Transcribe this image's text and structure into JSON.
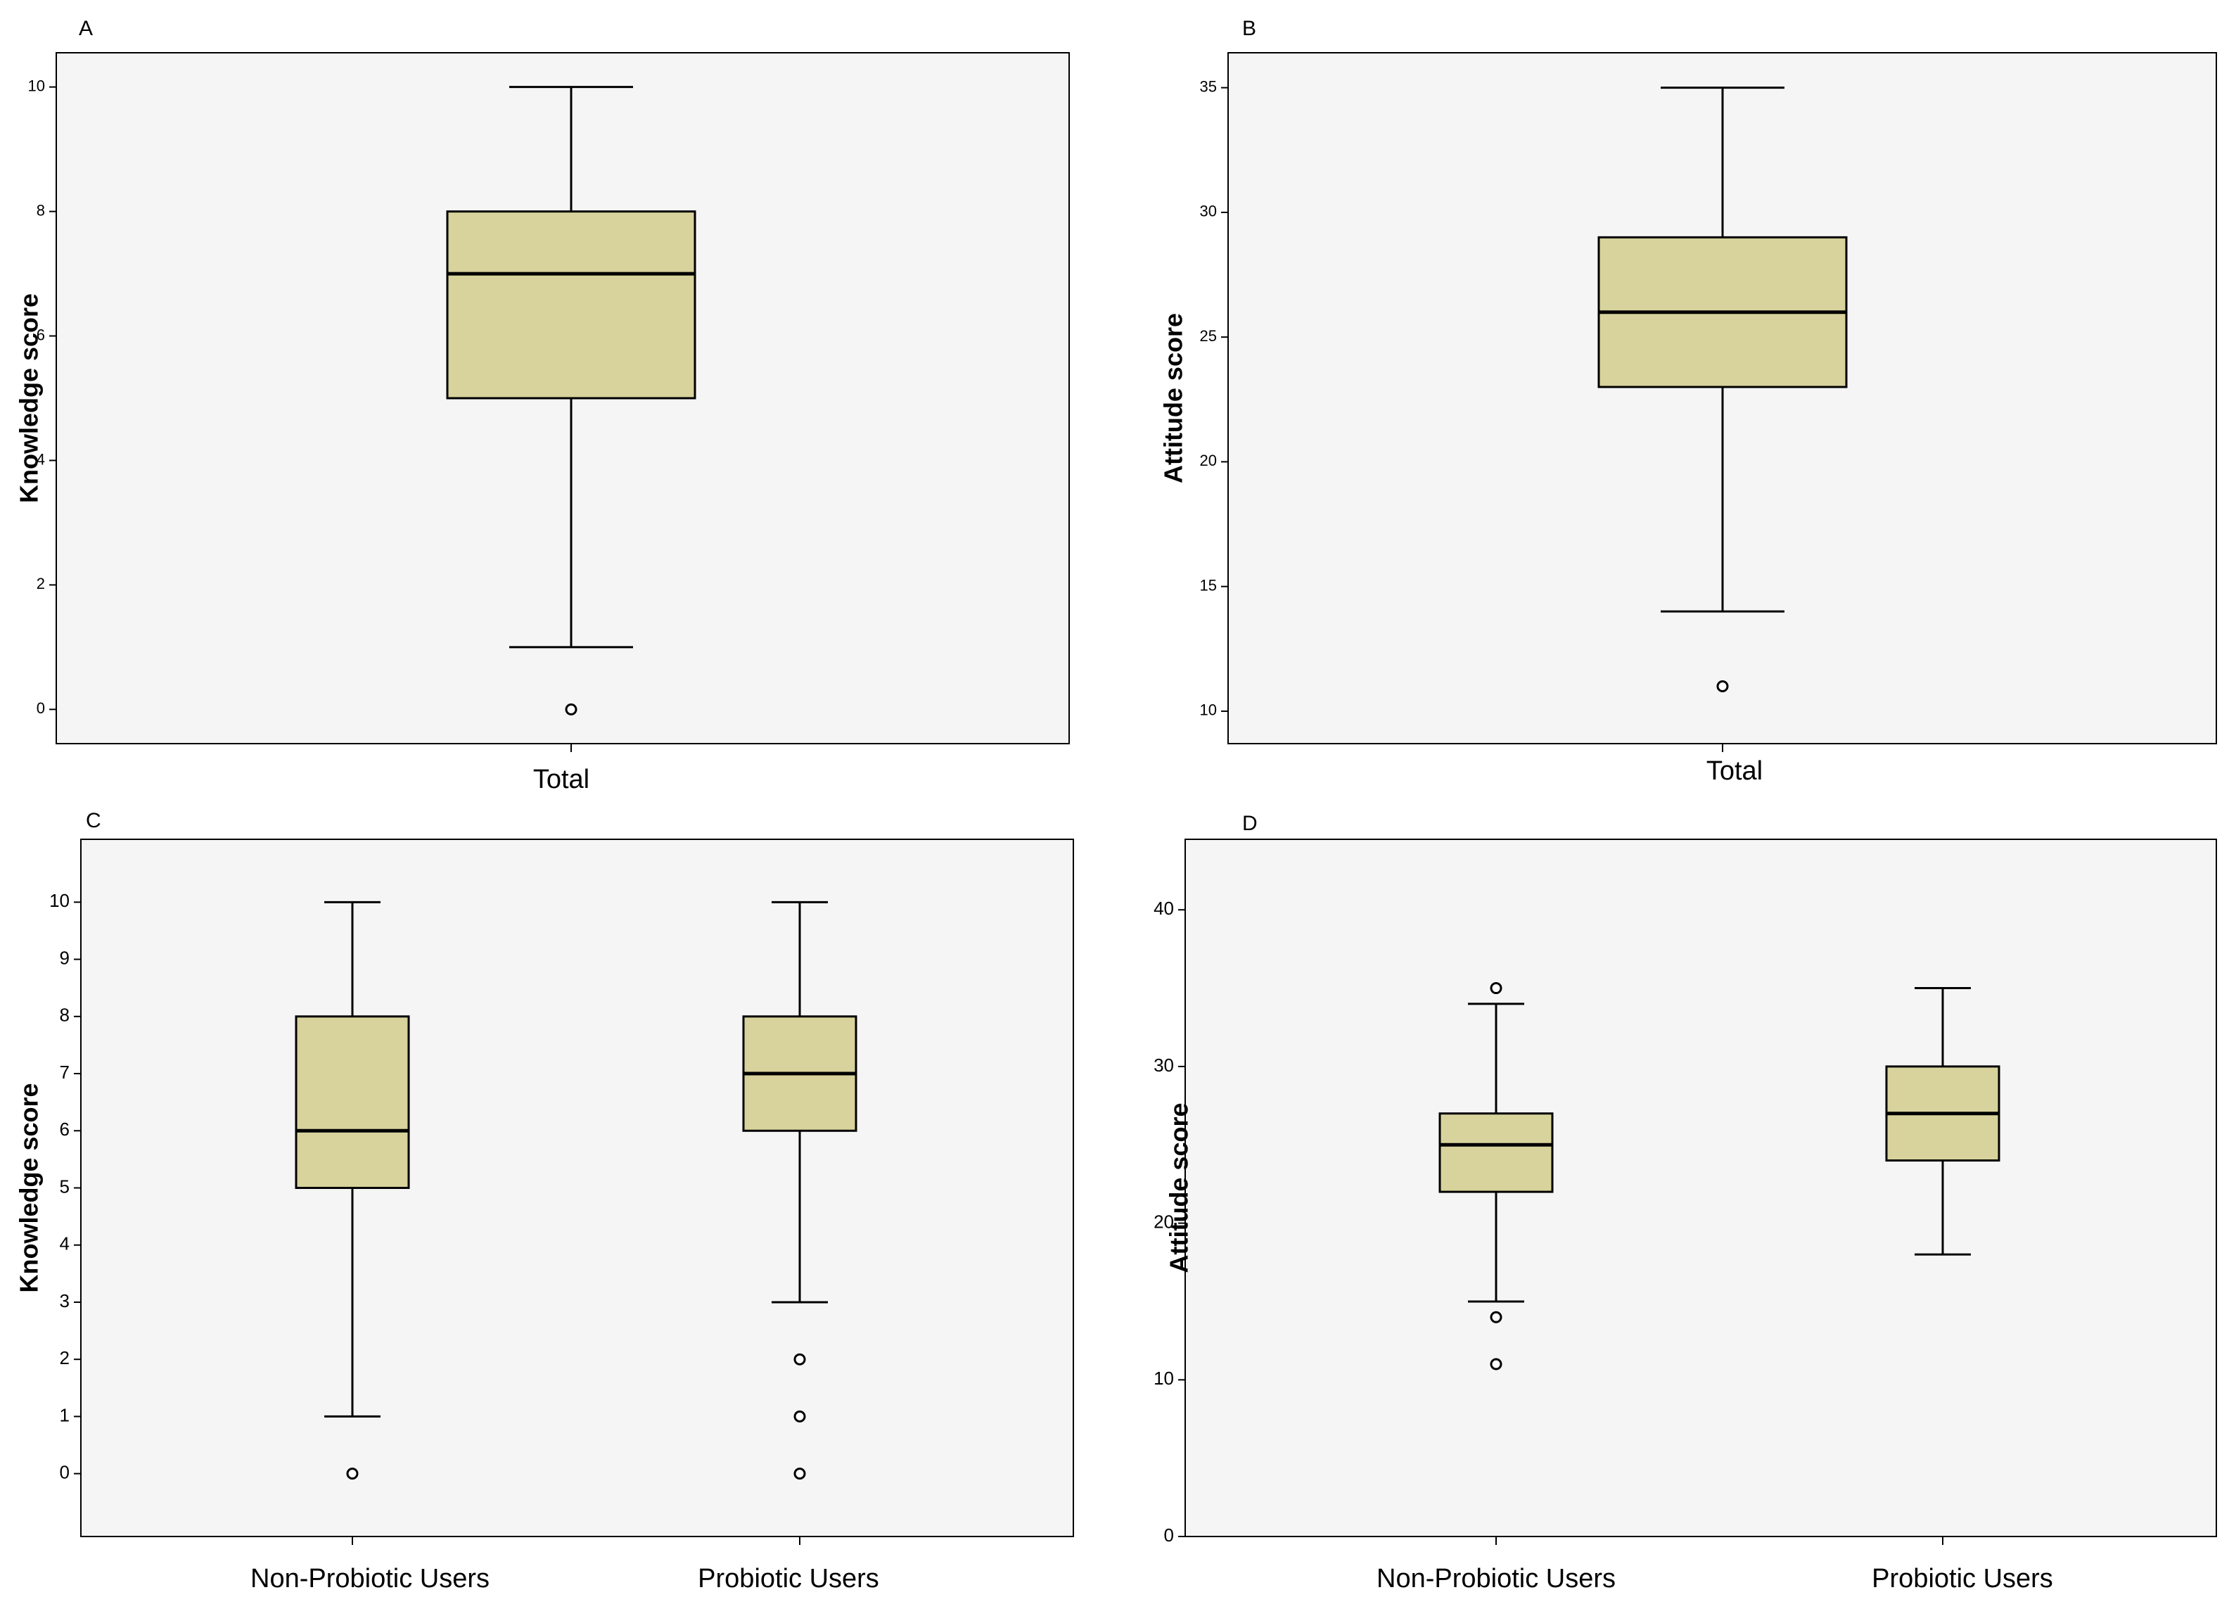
{
  "chart_data": [
    {
      "type": "box",
      "panel": "A",
      "ylabel": "Knowledge score",
      "xlabel": "",
      "ylim": [
        -0.55,
        10.55
      ],
      "yticks": [
        0,
        2,
        4,
        6,
        8,
        10
      ],
      "categories": [
        "Total"
      ],
      "boxes": [
        {
          "category": "Total",
          "whisker_low": 1,
          "q1": 5,
          "median": 7,
          "q3": 8,
          "whisker_high": 10,
          "outliers": [
            0
          ]
        }
      ]
    },
    {
      "type": "box",
      "panel": "B",
      "ylabel": "Attitude score",
      "xlabel": "",
      "ylim": [
        8.7,
        36.4
      ],
      "yticks": [
        10,
        15,
        20,
        25,
        30,
        35
      ],
      "categories": [
        "Total"
      ],
      "boxes": [
        {
          "category": "Total",
          "whisker_low": 14,
          "q1": 23,
          "median": 26,
          "q3": 29,
          "whisker_high": 35,
          "outliers": [
            11
          ]
        }
      ]
    },
    {
      "type": "box",
      "panel": "C",
      "ylabel": "Knowledge score",
      "xlabel": "",
      "ylim": [
        -1.1,
        11.1
      ],
      "yticks": [
        0,
        1,
        2,
        3,
        4,
        5,
        6,
        7,
        8,
        9,
        10
      ],
      "categories": [
        "Non-Probiotic Users",
        "Probiotic Users"
      ],
      "boxes": [
        {
          "category": "Non-Probiotic Users",
          "whisker_low": 1,
          "q1": 5,
          "median": 6,
          "q3": 8,
          "whisker_high": 10,
          "outliers": [
            0
          ]
        },
        {
          "category": "Probiotic Users",
          "whisker_low": 3,
          "q1": 6,
          "median": 7,
          "q3": 8,
          "whisker_high": 10,
          "outliers": [
            2,
            1,
            0
          ]
        }
      ]
    },
    {
      "type": "box",
      "panel": "D",
      "ylabel": "Attitude score",
      "xlabel": "",
      "ylim": [
        0,
        44.5
      ],
      "yticks": [
        0,
        10,
        20,
        30,
        40
      ],
      "categories": [
        "Non-Probiotic Users",
        "Probiotic Users"
      ],
      "boxes": [
        {
          "category": "Non-Probiotic Users",
          "whisker_low": 15,
          "q1": 22,
          "median": 25,
          "q3": 27,
          "whisker_high": 34,
          "outliers": [
            35,
            14,
            11
          ]
        },
        {
          "category": "Probiotic Users",
          "whisker_low": 18,
          "q1": 24,
          "median": 27,
          "q3": 30,
          "whisker_high": 35,
          "outliers": []
        }
      ]
    }
  ],
  "colors": {
    "plot_background": "#f5f5f5",
    "box_fill": "#d8d39c",
    "stroke": "#000000"
  }
}
